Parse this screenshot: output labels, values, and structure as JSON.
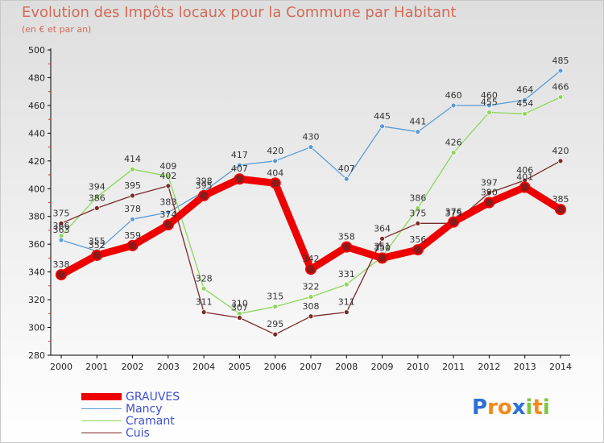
{
  "title": "Evolution des Impôts locaux pour la Commune par Habitant",
  "subtitle": "(en € et par an)",
  "logo": {
    "text": "Proxiti",
    "letters": [
      "P",
      "r",
      "o",
      "x",
      "i",
      "t",
      "i"
    ],
    "colors": [
      "#2d6fd6",
      "#f08a1c",
      "#f08a1c",
      "#2d6fd6",
      "#7cc63c",
      "#f08a1c",
      "#7cc63c"
    ]
  },
  "colors": {
    "title": "#d26b5a",
    "legend_text": "#3c4fd0",
    "axis_text": "#222222"
  },
  "chart_data": {
    "type": "line",
    "x": [
      "2000",
      "2001",
      "2002",
      "2003",
      "2004",
      "2005",
      "2006",
      "2007",
      "2008",
      "2009",
      "2010",
      "2011",
      "2012",
      "2013",
      "2014"
    ],
    "ylim": [
      280,
      500
    ],
    "yticks": [
      280,
      300,
      320,
      340,
      360,
      380,
      400,
      420,
      440,
      460,
      480,
      500
    ],
    "grid": false,
    "legend_position": "bottom-left",
    "series": [
      {
        "name": "Mancy",
        "color": "#5b9bd5",
        "width": 1.3,
        "values": [
          363,
          355,
          378,
          383,
          398,
          417,
          420,
          430,
          407,
          445,
          441,
          460,
          460,
          464,
          485
        ]
      },
      {
        "name": "Cramant",
        "color": "#8fd65b",
        "width": 1.3,
        "values": [
          366,
          394,
          414,
          409,
          328,
          310,
          315,
          322,
          331,
          351,
          386,
          426,
          455,
          454,
          466
        ]
      },
      {
        "name": "Cuis",
        "color": "#7a2a2a",
        "width": 1.3,
        "values": [
          375,
          386,
          395,
          402,
          311,
          307,
          295,
          308,
          311,
          364,
          375,
          375,
          397,
          406,
          420
        ]
      },
      {
        "name": "GRAUVES",
        "color": "#ee0000",
        "width": 9,
        "values": [
          338,
          352,
          359,
          374,
          395,
          407,
          404,
          342,
          358,
          350,
          356,
          376,
          390,
          401,
          385
        ]
      }
    ],
    "labels": {
      "Mancy": [
        "363",
        "355",
        "378",
        "383",
        "398",
        "417",
        "420",
        "430",
        "407",
        "445",
        "441",
        "460",
        "460",
        "464",
        "485"
      ],
      "Cramant": [
        "366",
        "394",
        "414",
        "409",
        "328",
        "310",
        "315",
        "322",
        "331",
        "351",
        "386",
        "426",
        "455",
        "454",
        "466"
      ],
      "Cuis": [
        "375",
        "386",
        "395",
        "402",
        "311",
        "307",
        "295",
        "308",
        "311",
        "364",
        "375",
        "375",
        "397",
        "406",
        "420"
      ],
      "GRAUVES": [
        "338",
        "352",
        "359",
        "374",
        "395",
        "407",
        "404",
        "342",
        "358",
        "350",
        "356",
        "376",
        "390",
        "401",
        "385"
      ]
    }
  },
  "legend": [
    {
      "name": "GRAUVES",
      "color": "#ee0000",
      "thick": true
    },
    {
      "name": "Mancy",
      "color": "#5b9bd5",
      "thick": false
    },
    {
      "name": "Cramant",
      "color": "#8fd65b",
      "thick": false
    },
    {
      "name": "Cuis",
      "color": "#7a2a2a",
      "thick": false
    }
  ]
}
